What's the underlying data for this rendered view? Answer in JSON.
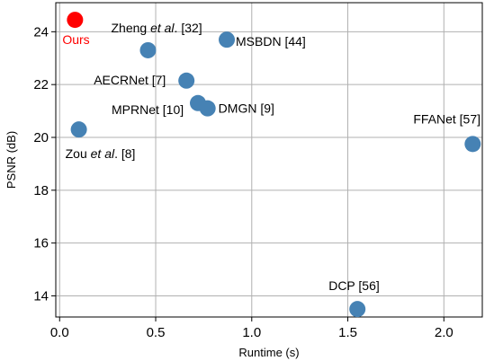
{
  "chart_data": {
    "type": "scatter",
    "xlabel": "Runtime (s)",
    "ylabel": "PSNR (dB)",
    "xlim": [
      -0.02,
      2.2
    ],
    "ylim": [
      13.2,
      25.1
    ],
    "grid": true,
    "x_ticks": [
      "0.0",
      "0.5",
      "1.0",
      "1.5",
      "2.0"
    ],
    "y_ticks": [
      "14",
      "16",
      "18",
      "20",
      "22",
      "24"
    ],
    "colors": {
      "default": "#4682b4",
      "highlight": "#ff0000",
      "default_label": "#000000",
      "highlight_label": "#ff0000"
    },
    "points": [
      {
        "label": "Ours",
        "label_parts": [
          {
            "text": "Ours",
            "italic": false
          }
        ],
        "x": 0.08,
        "y": 24.45,
        "highlight": true
      },
      {
        "label": "Zheng et al. [32]",
        "label_parts": [
          {
            "text": "Zheng ",
            "italic": false
          },
          {
            "text": "et al",
            "italic": true
          },
          {
            "text": ". [32]",
            "italic": false
          }
        ],
        "x": 0.46,
        "y": 23.3,
        "highlight": false
      },
      {
        "label": "MSBDN [44]",
        "label_parts": [
          {
            "text": "MSBDN [44]",
            "italic": false
          }
        ],
        "x": 0.87,
        "y": 23.7,
        "highlight": false
      },
      {
        "label": "AECRNet [7]",
        "label_parts": [
          {
            "text": "AECRNet [7]",
            "italic": false
          }
        ],
        "x": 0.66,
        "y": 22.15,
        "highlight": false
      },
      {
        "label": "MPRNet [10]",
        "label_parts": [
          {
            "text": "MPRNet [10]",
            "italic": false
          }
        ],
        "x": 0.72,
        "y": 21.3,
        "highlight": false
      },
      {
        "label": "DMGN [9]",
        "label_parts": [
          {
            "text": "DMGN [9]",
            "italic": false
          }
        ],
        "x": 0.77,
        "y": 21.1,
        "highlight": false
      },
      {
        "label": "Zou et al. [8]",
        "label_parts": [
          {
            "text": "Zou ",
            "italic": false
          },
          {
            "text": "et al",
            "italic": true
          },
          {
            "text": ". [8]",
            "italic": false
          }
        ],
        "x": 0.1,
        "y": 20.3,
        "highlight": false
      },
      {
        "label": "FFANet [57]",
        "label_parts": [
          {
            "text": "FFANet [57]",
            "italic": false
          }
        ],
        "x": 2.15,
        "y": 19.75,
        "highlight": false
      },
      {
        "label": "DCP [56]",
        "label_parts": [
          {
            "text": "DCP [56]",
            "italic": false
          }
        ],
        "x": 1.55,
        "y": 13.5,
        "highlight": false
      }
    ]
  }
}
